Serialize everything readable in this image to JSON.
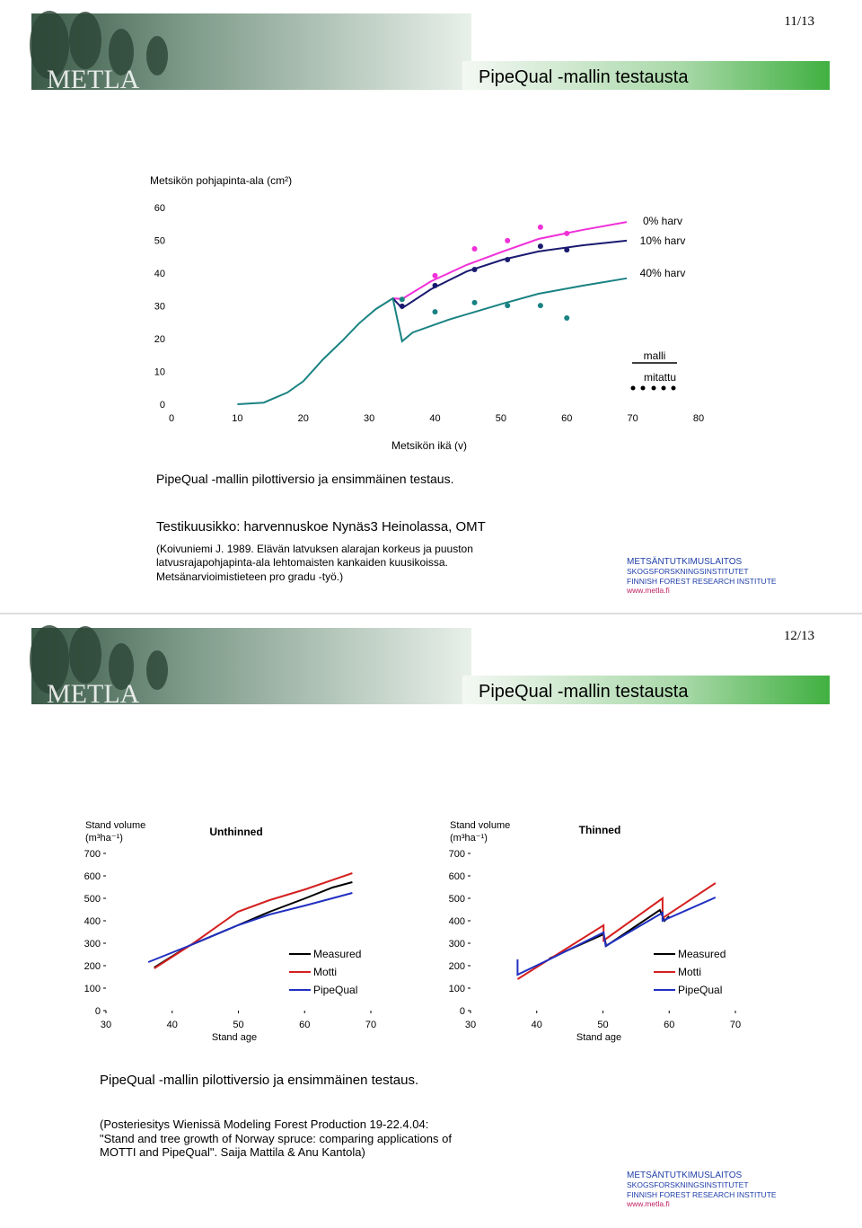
{
  "slides": [
    {
      "page_number": "11/13",
      "logo": "METLA",
      "title": "PipeQual -mallin testausta",
      "body": [
        "PipeQual -mallin pilottiversio ja ensimmäinen testaus.",
        "Testikuusikko: harvennuskoe Nynäs3 Heinolassa, OMT"
      ],
      "notes": [
        "(Koivuniemi J.  1989. Elävän latvuksen alarajan korkeus ja puuston",
        "latvusrajapohjapinta-ala lehtomaisten kankaiden kuusikoissa.",
        "Metsänarvioimistieteen pro gradu -työ.)"
      ],
      "footer": [
        "METSÄNTUTKIMUSLAITOS",
        "SKOGSFORSKNINGSINSTITUTET",
        "FINNISH FOREST RESEARCH INSTITUTE",
        "www.metla.fi"
      ]
    },
    {
      "page_number": "12/13",
      "logo": "METLA",
      "title": "PipeQual -mallin testausta",
      "body": [
        "PipeQual -mallin pilottiversio ja ensimmäinen testaus."
      ],
      "notes": [
        "(Posteriesitys Wienissä Modeling Forest Production 19-22.4.04:",
        "\"Stand and tree growth of Norway spruce: comparing applications of",
        "MOTTI and PipeQual\". Saija Mattila & Anu Kantola)"
      ],
      "footer": [
        "METSÄNTUTKIMUSLAITOS",
        "SKOGSFORSKNINGSINSTITUTET",
        "FINNISH FOREST RESEARCH INSTITUTE",
        "www.metla.fi"
      ]
    }
  ],
  "chart_data": [
    {
      "type": "line",
      "title": "Metsikön pohjapinta-ala (cm²)",
      "x_label": "Metsikön ikä (v)",
      "xlim": [
        0,
        80
      ],
      "ylim": [
        0,
        60
      ],
      "xticks": [
        0,
        10,
        20,
        30,
        40,
        50,
        60,
        70,
        80
      ],
      "yticks": [
        0,
        10,
        20,
        30,
        40,
        50,
        60
      ],
      "grid": false,
      "legend": {
        "line_label": "malli",
        "points_label": "mitattu"
      },
      "series": [
        {
          "name": "0% harv",
          "color": "#f030d8",
          "x": [
            33.6,
            35,
            39.4,
            44.8,
            50.3,
            55.7,
            62.5,
            69.1
          ],
          "values": [
            32.3,
            32.1,
            37.5,
            42.5,
            46.6,
            50.4,
            53.2,
            55.6
          ],
          "measured_x": [
            40,
            46,
            51,
            56,
            60
          ],
          "measured": [
            39.2,
            47.4,
            49.9,
            54,
            52.1
          ]
        },
        {
          "name": "10% harv",
          "color": "#1a1a70",
          "x": [
            33.6,
            35,
            39.4,
            44.8,
            50.3,
            55.7,
            62.5,
            69.1
          ],
          "values": [
            32.3,
            29.3,
            35.1,
            40.5,
            44.1,
            46.6,
            48.5,
            49.9
          ],
          "measured_x": [
            35,
            40,
            46,
            51,
            56,
            60
          ],
          "measured": [
            29.9,
            36.2,
            41.1,
            44.1,
            48.2,
            47.1
          ]
        },
        {
          "name": "40% harv",
          "color": "#1a8282",
          "x": [
            10,
            14,
            17.6,
            20,
            23,
            26,
            28.5,
            31,
            33.6,
            35,
            36.6,
            42.1,
            50.3,
            55.7,
            62.5,
            69.1
          ],
          "values": [
            0,
            0.5,
            3.6,
            7,
            13.7,
            19.5,
            24.7,
            29,
            32.3,
            19.2,
            21.9,
            25.8,
            30.7,
            33.7,
            36.2,
            38.4
          ],
          "measured_x": [
            35,
            40,
            46,
            51,
            56,
            60
          ],
          "measured": [
            32,
            28.2,
            31,
            30.1,
            30.1,
            26.3
          ]
        }
      ]
    },
    {
      "type": "line",
      "title": "Unthinned",
      "x_label": "Stand age",
      "y_label": [
        "Stand volume",
        "(m³ha⁻¹)"
      ],
      "xlim": [
        30,
        70
      ],
      "ylim": [
        0,
        700
      ],
      "xticks": [
        30,
        40,
        50,
        60,
        70
      ],
      "yticks": [
        0,
        100,
        200,
        300,
        400,
        500,
        600,
        700
      ],
      "grid": false,
      "legend_corner": "lower right",
      "series": [
        {
          "name": "Measured",
          "color": "#000000",
          "x": [
            37.3,
            42.5,
            49.9,
            54.7,
            60.1,
            64.2,
            67.2
          ],
          "values": [
            192,
            288,
            380,
            440,
            500,
            548,
            572
          ]
        },
        {
          "name": "Motti",
          "color": "#d42020",
          "x": [
            37.3,
            43.2,
            49.9,
            54.7,
            60.1,
            67.2
          ],
          "values": [
            188,
            300,
            440,
            492,
            540,
            612
          ]
        },
        {
          "name": "PipeQual",
          "color": "#2030c0",
          "x": [
            36.4,
            42.5,
            49.9,
            54.7,
            60.1,
            67.2
          ],
          "values": [
            216,
            288,
            380,
            428,
            468,
            524
          ]
        }
      ]
    },
    {
      "type": "line",
      "title": "Thinned",
      "x_label": "Stand age",
      "y_label": [
        "Stand volume",
        "(m³ha⁻¹)"
      ],
      "xlim": [
        30,
        70
      ],
      "ylim": [
        0,
        700
      ],
      "xticks": [
        30,
        40,
        50,
        60,
        70
      ],
      "yticks": [
        0,
        100,
        200,
        300,
        400,
        500,
        600,
        700
      ],
      "grid": false,
      "legend_corner": "lower right",
      "series": [
        {
          "name": "Measured",
          "color": "#000000",
          "x": [
            41.9,
            50.1,
            50.5,
            58.6,
            59.3,
            60
          ],
          "values": [
            232,
            340,
            288,
            448,
            400,
            420
          ]
        },
        {
          "name": "Motti",
          "color": "#d42020",
          "x": [
            37.1,
            50.1,
            50.1,
            59,
            59,
            67
          ],
          "values": [
            140,
            380,
            312,
            500,
            412,
            568
          ]
        },
        {
          "name": "PipeQual",
          "color": "#2030c0",
          "x": [
            37.1,
            37.1,
            41.9,
            50.1,
            50.4,
            59,
            59,
            67
          ],
          "values": [
            228,
            160,
            228,
            348,
            288,
            436,
            400,
            504
          ]
        }
      ]
    }
  ]
}
